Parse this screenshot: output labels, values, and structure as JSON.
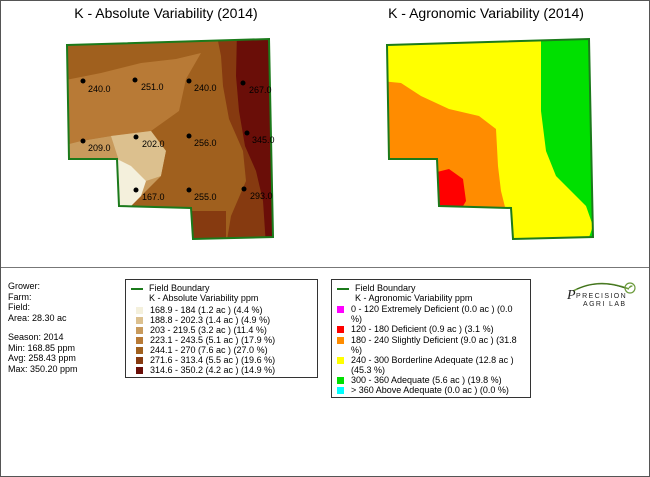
{
  "left_map": {
    "title": "K - Absolute Variability (2014)",
    "points": [
      {
        "label": "240.0"
      },
      {
        "label": "251.0"
      },
      {
        "label": "240.0"
      },
      {
        "label": "267.0"
      },
      {
        "label": "209.0"
      },
      {
        "label": "202.0"
      },
      {
        "label": "256.0"
      },
      {
        "label": "345.0"
      },
      {
        "label": "167.0"
      },
      {
        "label": "255.0"
      },
      {
        "label": "293.0"
      }
    ]
  },
  "right_map": {
    "title": "K - Agronomic Variability (2014)"
  },
  "info": {
    "grower": "Grower:",
    "farm": "Farm:",
    "field": "Field:",
    "area": "Area: 28.30 ac",
    "season": "Season: 2014",
    "min": "Min: 168.85 ppm",
    "avg": "Avg: 258.43 ppm",
    "max": "Max: 350.20 ppm"
  },
  "legend_absolute": {
    "boundary_label": "Field Boundary",
    "heading": "K - Absolute Variability ppm",
    "items": [
      {
        "label": "168.9 - 184 (1.2 ac ) (4.4 %)",
        "color": "#f4f0dc"
      },
      {
        "label": "188.8 - 202.3 (1.4 ac ) (4.9 %)",
        "color": "#dcc08e"
      },
      {
        "label": "203 - 219.5 (3.2 ac ) (11.4 %)",
        "color": "#c89a5c"
      },
      {
        "label": "223.1 - 243.5 (5.1 ac ) (17.9 %)",
        "color": "#b87a36"
      },
      {
        "label": "244.1 - 270 (7.6 ac ) (27.0 %)",
        "color": "#a0601e"
      },
      {
        "label": "271.6 - 313.4 (5.5 ac ) (19.6 %)",
        "color": "#863a10"
      },
      {
        "label": "314.6 - 350.2 (4.2 ac ) (14.9 %)",
        "color": "#6a0e08"
      }
    ]
  },
  "legend_agronomic": {
    "boundary_label": "Field Boundary",
    "heading": "K - Agronomic Variability ppm",
    "items": [
      {
        "label": "0 - 120 Extremely Deficient (0.0 ac ) (0.0 %)",
        "color": "#ff00ff"
      },
      {
        "label": "120 - 180 Deficient (0.9 ac ) (3.1 %)",
        "color": "#ff0000"
      },
      {
        "label": "180 - 240 Slightly Deficient (9.0 ac ) (31.8 %)",
        "color": "#ff8c00"
      },
      {
        "label": "240 - 300 Borderline Adequate (12.8 ac ) (45.3 %)",
        "color": "#ffff00"
      },
      {
        "label": "300 - 360 Adequate (5.6 ac ) (19.8 %)",
        "color": "#00e000"
      },
      {
        "label": "> 360 Above Adequate (0.0 ac ) (0.0 %)",
        "color": "#00ffff"
      }
    ]
  },
  "logo": {
    "line1": "PRECISION",
    "line2": "AGRI LAB"
  },
  "colors": {
    "boundary": "#1b7a1b"
  }
}
